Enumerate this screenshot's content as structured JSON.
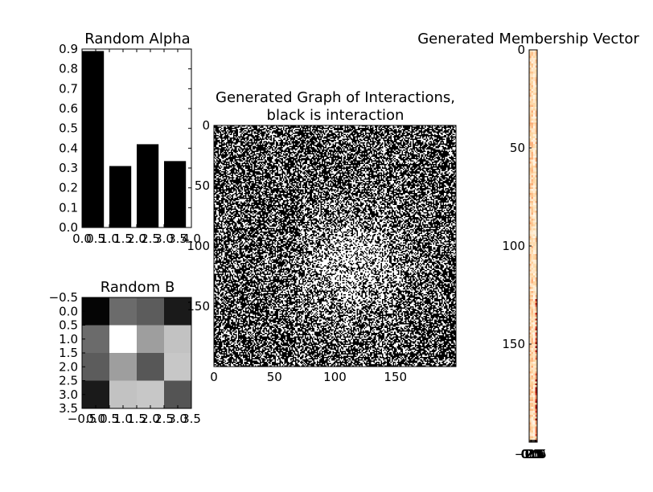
{
  "chart_data": [
    {
      "id": "alpha",
      "type": "bar",
      "title": "Random Alpha",
      "x": [
        0,
        1,
        2,
        3
      ],
      "values": [
        0.89,
        0.31,
        0.42,
        0.335
      ],
      "bar_width": 0.8,
      "xlim": [
        0.0,
        4.0
      ],
      "ylim": [
        0.0,
        0.9
      ],
      "xticks": [
        "0.0",
        "0.5",
        "1.0",
        "1.5",
        "2.0",
        "2.5",
        "3.0",
        "3.5",
        "4.0"
      ],
      "yticks": [
        "0.0",
        "0.1",
        "0.2",
        "0.3",
        "0.4",
        "0.5",
        "0.6",
        "0.7",
        "0.8",
        "0.9"
      ],
      "bar_color": "#000000"
    },
    {
      "id": "b",
      "type": "heatmap",
      "title": "Random B",
      "colormap": "gray",
      "matrix": [
        [
          0.02,
          0.42,
          0.36,
          0.1
        ],
        [
          0.42,
          1.0,
          0.62,
          0.76
        ],
        [
          0.36,
          0.62,
          0.34,
          0.78
        ],
        [
          0.1,
          0.76,
          0.78,
          0.33
        ]
      ],
      "xticks": [
        "−0.5",
        "0.0",
        "0.5",
        "1.0",
        "1.5",
        "2.0",
        "2.5",
        "3.0",
        "3.5"
      ],
      "yticks": [
        "−0.5",
        "0.0",
        "0.5",
        "1.0",
        "1.5",
        "2.0",
        "2.5",
        "3.0",
        "3.5"
      ]
    },
    {
      "id": "graph",
      "type": "heatmap",
      "title_lines": [
        "Generated Graph of Interactions,",
        "black is interaction"
      ],
      "colormap": "binary",
      "size": 200,
      "xticks": [
        "0",
        "50",
        "100",
        "150"
      ],
      "yticks": [
        "0",
        "50",
        "100",
        "150"
      ],
      "interaction_color": "#000000",
      "background_color": "#ffffff"
    },
    {
      "id": "membership",
      "type": "heatmap",
      "title": "Generated Membership Vector",
      "colormap": "OrRd",
      "rows": 200,
      "cols": 4,
      "yticks": [
        "0",
        "50",
        "100",
        "150"
      ],
      "xticks": [
        "−0.5",
        "0.0",
        "0.5",
        "1.0",
        "1.5",
        "2.0",
        "2.5",
        "3.0",
        "3.5"
      ]
    }
  ]
}
